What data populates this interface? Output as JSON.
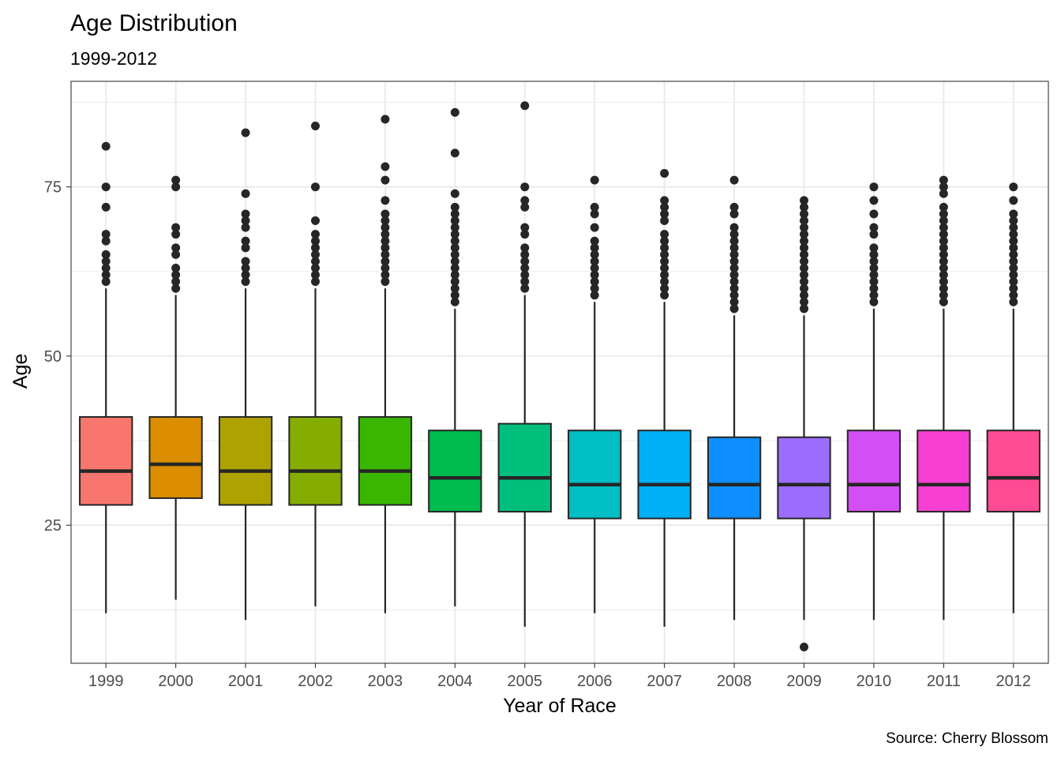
{
  "chart_data": {
    "type": "boxplot",
    "title": "Age Distribution",
    "subtitle": "1999-2012",
    "xlabel": "Year of Race",
    "ylabel": "Age",
    "caption": "Source: Cherry Blossom",
    "ylim": [
      4.6,
      90.6
    ],
    "yticks": [
      25,
      50,
      75
    ],
    "grid": true,
    "legend": "none",
    "categories": [
      "1999",
      "2000",
      "2001",
      "2002",
      "2003",
      "2004",
      "2005",
      "2006",
      "2007",
      "2008",
      "2009",
      "2010",
      "2011",
      "2012"
    ],
    "colors": [
      "#F8766D",
      "#DB8E00",
      "#AEA200",
      "#64B200",
      "#00BD5C",
      "#00C1A7",
      "#00BADE",
      "#00A6FF",
      "#B385FF",
      "#EF67EB",
      "#FF63B6",
      "#F8766D",
      "#DB8E00",
      "#AEA200"
    ],
    "boxes": [
      {
        "year": "1999",
        "fill": "#F8766D",
        "min": 12,
        "q1": 28,
        "median": 33,
        "q3": 41,
        "max": 60,
        "outliers": [
          61,
          62,
          63,
          64,
          65,
          67,
          68,
          72,
          75,
          81
        ]
      },
      {
        "year": "2000",
        "fill": "#DB8E00",
        "min": 14,
        "q1": 29,
        "median": 34,
        "q3": 41,
        "max": 59,
        "outliers": [
          60,
          61,
          62,
          63,
          65,
          66,
          68,
          69,
          75,
          76
        ]
      },
      {
        "year": "2001",
        "fill": "#AEA200",
        "min": 11,
        "q1": 28,
        "median": 33,
        "q3": 41,
        "max": 60,
        "outliers": [
          61,
          62,
          63,
          64,
          66,
          67,
          69,
          70,
          71,
          74,
          83
        ]
      },
      {
        "year": "2002",
        "fill": "#85AD00",
        "min": 13,
        "q1": 28,
        "median": 33,
        "q3": 41,
        "max": 60,
        "outliers": [
          61,
          62,
          63,
          64,
          65,
          66,
          67,
          68,
          70,
          75,
          84
        ]
      },
      {
        "year": "2003",
        "fill": "#39B600",
        "min": 12,
        "q1": 28,
        "median": 33,
        "q3": 41,
        "max": 60,
        "outliers": [
          61,
          62,
          63,
          64,
          65,
          66,
          67,
          68,
          69,
          70,
          71,
          73,
          76,
          78,
          85
        ]
      },
      {
        "year": "2004",
        "fill": "#00BB4E",
        "min": 13,
        "q1": 27,
        "median": 32,
        "q3": 39,
        "max": 57,
        "outliers": [
          58,
          59,
          60,
          61,
          62,
          63,
          64,
          65,
          66,
          67,
          68,
          69,
          70,
          71,
          72,
          74,
          80,
          86
        ]
      },
      {
        "year": "2005",
        "fill": "#00BF7D",
        "min": 10,
        "q1": 27,
        "median": 32,
        "q3": 40,
        "max": 59,
        "outliers": [
          60,
          61,
          62,
          63,
          64,
          65,
          66,
          68,
          69,
          72,
          73,
          75,
          87
        ]
      },
      {
        "year": "2006",
        "fill": "#00BFC4",
        "min": 12,
        "q1": 26,
        "median": 31,
        "q3": 39,
        "max": 58,
        "outliers": [
          59,
          60,
          61,
          62,
          63,
          64,
          65,
          66,
          67,
          69,
          71,
          72,
          76
        ]
      },
      {
        "year": "2007",
        "fill": "#00B0F6",
        "min": 10,
        "q1": 26,
        "median": 31,
        "q3": 39,
        "max": 58,
        "outliers": [
          59,
          60,
          61,
          62,
          63,
          64,
          65,
          66,
          67,
          68,
          70,
          71,
          72,
          73,
          77
        ]
      },
      {
        "year": "2008",
        "fill": "#0F8FFF",
        "min": 11,
        "q1": 26,
        "median": 31,
        "q3": 38,
        "max": 56,
        "outliers": [
          57,
          58,
          59,
          60,
          61,
          62,
          63,
          64,
          65,
          66,
          67,
          68,
          69,
          71,
          72,
          76
        ]
      },
      {
        "year": "2009",
        "fill": "#9C6DFF",
        "min": 11,
        "q1": 26,
        "median": 31,
        "q3": 38,
        "max": 56,
        "outliers": [
          7,
          57,
          58,
          59,
          60,
          61,
          62,
          63,
          64,
          65,
          66,
          67,
          68,
          69,
          70,
          71,
          72,
          73
        ]
      },
      {
        "year": "2010",
        "fill": "#D34EF5",
        "min": 11,
        "q1": 27,
        "median": 31,
        "q3": 39,
        "max": 57,
        "outliers": [
          58,
          59,
          60,
          61,
          62,
          63,
          64,
          65,
          66,
          68,
          69,
          71,
          73,
          75
        ]
      },
      {
        "year": "2011",
        "fill": "#F63FD0",
        "min": 11,
        "q1": 27,
        "median": 31,
        "q3": 39,
        "max": 57,
        "outliers": [
          58,
          59,
          60,
          61,
          62,
          63,
          64,
          65,
          66,
          67,
          68,
          69,
          70,
          71,
          72,
          74,
          75,
          76
        ]
      },
      {
        "year": "2012",
        "fill": "#FF4B94",
        "min": 12,
        "q1": 27,
        "median": 32,
        "q3": 39,
        "max": 57,
        "outliers": [
          58,
          59,
          60,
          61,
          62,
          63,
          64,
          65,
          66,
          67,
          68,
          69,
          70,
          71,
          73,
          75
        ]
      }
    ]
  }
}
